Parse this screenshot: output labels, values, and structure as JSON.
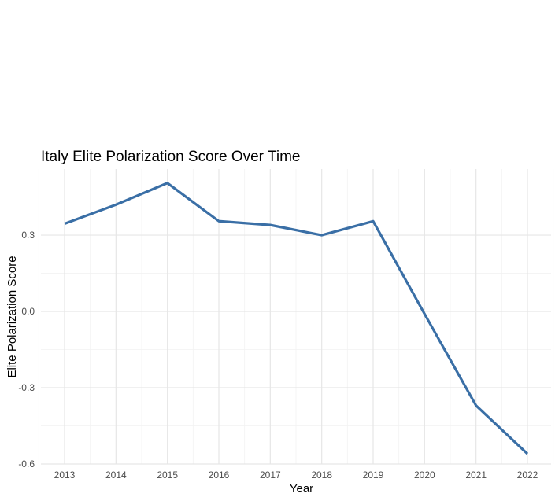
{
  "chart_data": {
    "type": "line",
    "title": "Italy Elite Polarization Score Over Time",
    "xlabel": "Year",
    "ylabel": "Elite Polarization Score",
    "x": [
      "2013",
      "2014",
      "2015",
      "2016",
      "2017",
      "2018",
      "2019",
      "2020",
      "2021",
      "2022"
    ],
    "series": [
      {
        "values": [
          0.345,
          0.42,
          0.505,
          0.355,
          0.34,
          0.3,
          0.355,
          -0.01,
          -0.37,
          -0.56
        ]
      }
    ],
    "y_ticks": [
      -0.6,
      -0.3,
      0.0,
      0.3
    ],
    "y_tick_labels": [
      "-0.6",
      "-0.3",
      "0.0",
      "0.3"
    ],
    "ylim": [
      -0.6,
      0.56
    ],
    "grid": true,
    "legend": "none",
    "line_color": "#3a6fa6"
  }
}
